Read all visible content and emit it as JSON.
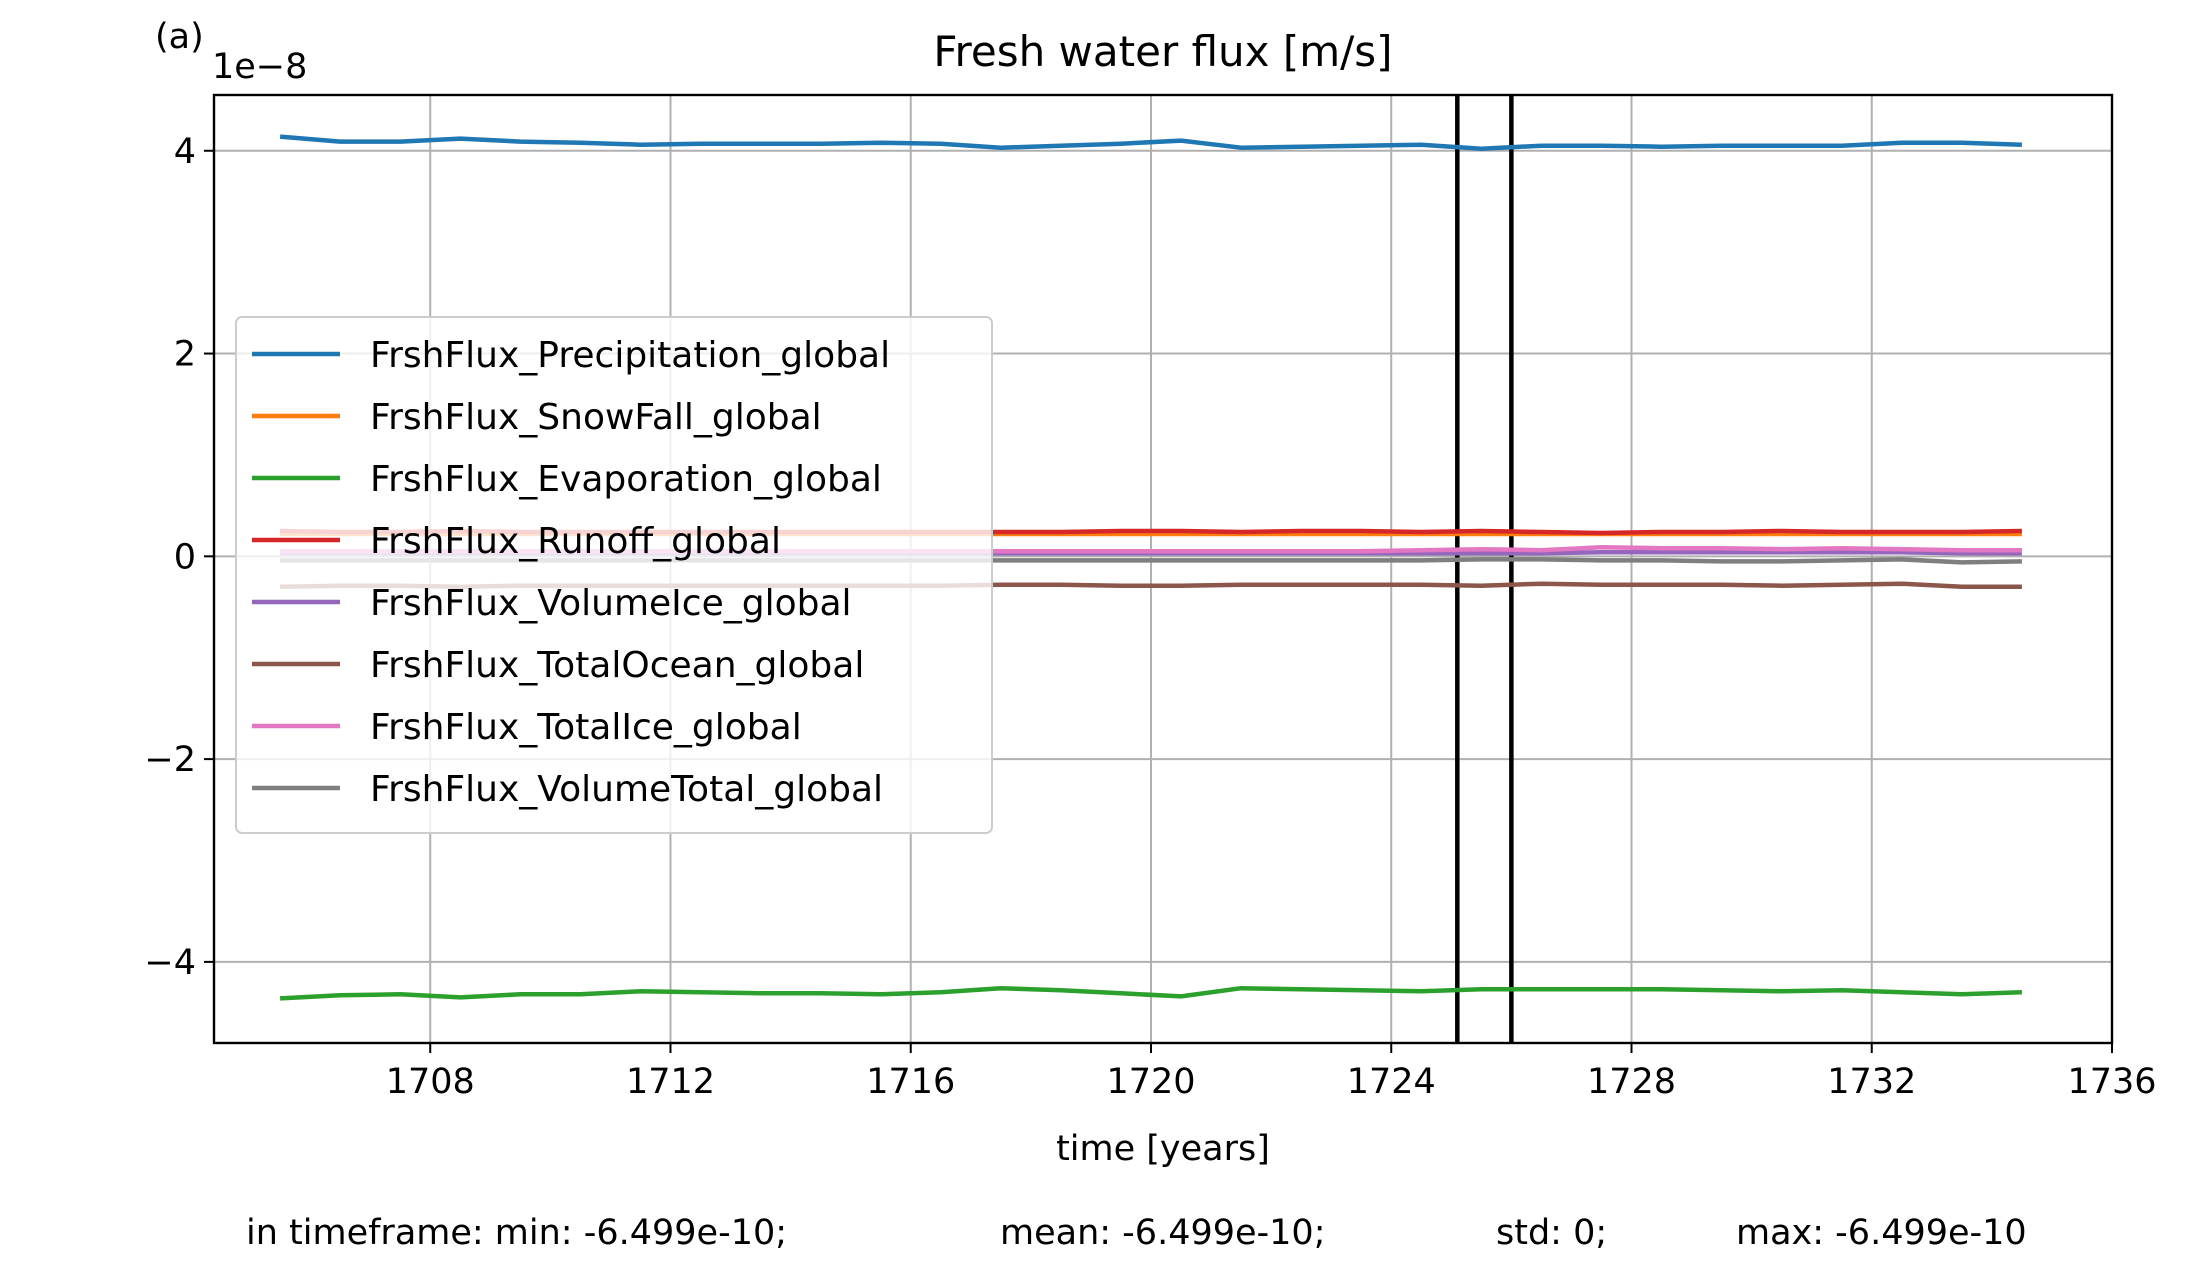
{
  "chart_data": {
    "type": "line",
    "panel_label": "(a)",
    "title": "Fresh water flux [m/s]",
    "xlabel": "time [years]",
    "ylabel": "",
    "y_offset_label": "1e−8",
    "y_scale": 1e-08,
    "xlim": [
      1704.4,
      1736.0
    ],
    "ylim": [
      -4.8,
      4.55
    ],
    "x_ticks": [
      1708,
      1712,
      1716,
      1720,
      1724,
      1728,
      1732,
      1736
    ],
    "y_ticks": [
      4,
      2,
      0,
      -2,
      -4
    ],
    "y_tick_labels": [
      "4",
      "2",
      "0",
      "−2",
      "−4"
    ],
    "grid": true,
    "legend_position": "center-left",
    "vertical_lines": [
      1725.1,
      1726.0
    ],
    "x": [
      1705.5,
      1706.5,
      1707.5,
      1708.5,
      1709.5,
      1710.5,
      1711.5,
      1712.5,
      1713.5,
      1714.5,
      1715.5,
      1716.5,
      1717.5,
      1718.5,
      1719.5,
      1720.5,
      1721.5,
      1722.5,
      1723.5,
      1724.5,
      1725.5,
      1726.5,
      1727.5,
      1728.5,
      1729.5,
      1730.5,
      1731.5,
      1732.5,
      1733.5,
      1734.5
    ],
    "series": [
      {
        "name": "FrshFlux_Precipitation_global",
        "color": "#1f77b4",
        "values": [
          4.14,
          4.09,
          4.09,
          4.12,
          4.09,
          4.08,
          4.06,
          4.07,
          4.07,
          4.07,
          4.08,
          4.07,
          4.03,
          4.05,
          4.07,
          4.1,
          4.03,
          4.04,
          4.05,
          4.06,
          4.02,
          4.05,
          4.05,
          4.04,
          4.05,
          4.05,
          4.05,
          4.08,
          4.08,
          4.06
        ]
      },
      {
        "name": "FrshFlux_SnowFall_global",
        "color": "#ff7f0e",
        "values": [
          0.22,
          0.22,
          0.22,
          0.22,
          0.22,
          0.22,
          0.22,
          0.22,
          0.22,
          0.22,
          0.22,
          0.22,
          0.22,
          0.22,
          0.22,
          0.22,
          0.22,
          0.22,
          0.22,
          0.22,
          0.22,
          0.22,
          0.22,
          0.22,
          0.22,
          0.22,
          0.22,
          0.22,
          0.22,
          0.22
        ]
      },
      {
        "name": "FrshFlux_Evaporation_global",
        "color": "#2ca02c",
        "values": [
          -4.36,
          -4.33,
          -4.32,
          -4.35,
          -4.32,
          -4.32,
          -4.29,
          -4.3,
          -4.31,
          -4.31,
          -4.32,
          -4.3,
          -4.26,
          -4.28,
          -4.31,
          -4.34,
          -4.26,
          -4.27,
          -4.28,
          -4.29,
          -4.27,
          -4.27,
          -4.27,
          -4.27,
          -4.28,
          -4.29,
          -4.28,
          -4.3,
          -4.32,
          -4.3
        ]
      },
      {
        "name": "FrshFlux_Runoff_global",
        "color": "#d62728",
        "values": [
          0.25,
          0.24,
          0.24,
          0.25,
          0.24,
          0.24,
          0.24,
          0.24,
          0.24,
          0.24,
          0.24,
          0.24,
          0.24,
          0.24,
          0.25,
          0.25,
          0.24,
          0.25,
          0.25,
          0.24,
          0.25,
          0.24,
          0.23,
          0.24,
          0.24,
          0.25,
          0.24,
          0.24,
          0.24,
          0.25
        ]
      },
      {
        "name": "FrshFlux_VolumeIce_global",
        "color": "#9467bd",
        "values": [
          0.03,
          0.03,
          0.03,
          0.03,
          0.03,
          0.03,
          0.03,
          0.03,
          0.03,
          0.03,
          0.03,
          0.03,
          0.03,
          0.03,
          0.03,
          0.03,
          0.03,
          0.03,
          0.03,
          0.03,
          0.03,
          0.03,
          0.04,
          0.04,
          0.04,
          0.04,
          0.04,
          0.04,
          0.03,
          0.03
        ]
      },
      {
        "name": "FrshFlux_TotalOcean_global",
        "color": "#8c564b",
        "values": [
          -0.3,
          -0.29,
          -0.29,
          -0.3,
          -0.29,
          -0.29,
          -0.29,
          -0.29,
          -0.29,
          -0.29,
          -0.29,
          -0.29,
          -0.28,
          -0.28,
          -0.29,
          -0.29,
          -0.28,
          -0.28,
          -0.28,
          -0.28,
          -0.29,
          -0.27,
          -0.28,
          -0.28,
          -0.28,
          -0.29,
          -0.28,
          -0.27,
          -0.3,
          -0.3
        ]
      },
      {
        "name": "FrshFlux_TotalIce_global",
        "color": "#e377c2",
        "values": [
          0.05,
          0.05,
          0.05,
          0.05,
          0.05,
          0.05,
          0.05,
          0.05,
          0.05,
          0.05,
          0.05,
          0.05,
          0.05,
          0.05,
          0.05,
          0.05,
          0.05,
          0.05,
          0.05,
          0.06,
          0.07,
          0.06,
          0.09,
          0.08,
          0.08,
          0.07,
          0.08,
          0.07,
          0.06,
          0.06
        ]
      },
      {
        "name": "FrshFlux_VolumeTotal_global",
        "color": "#7f7f7f",
        "values": [
          -0.04,
          -0.04,
          -0.04,
          -0.04,
          -0.04,
          -0.04,
          -0.04,
          -0.04,
          -0.04,
          -0.04,
          -0.04,
          -0.04,
          -0.04,
          -0.04,
          -0.04,
          -0.04,
          -0.04,
          -0.04,
          -0.04,
          -0.04,
          -0.03,
          -0.03,
          -0.04,
          -0.04,
          -0.05,
          -0.05,
          -0.04,
          -0.03,
          -0.06,
          -0.05
        ]
      }
    ],
    "footer": {
      "min": "in timeframe: min: -6.499e-10;",
      "mean": "mean: -6.499e-10;",
      "std": "std: 0;",
      "max": "max: -6.499e-10"
    }
  }
}
